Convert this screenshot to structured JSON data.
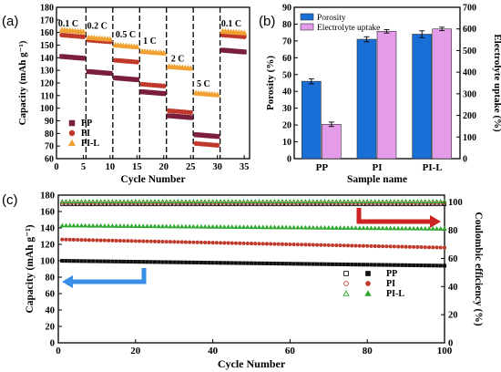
{
  "chart_data": [
    {
      "panel": "(a)",
      "type": "scatter",
      "xlabel": "Cycle Number",
      "ylabel": "Capacity (mAh g⁻¹)",
      "xlim": [
        0,
        36
      ],
      "ylim": [
        60,
        180
      ],
      "xticks": [
        0,
        5,
        10,
        15,
        20,
        25,
        30,
        35
      ],
      "yticks": [
        60,
        70,
        80,
        90,
        100,
        110,
        120,
        130,
        140,
        150,
        160,
        170,
        180
      ],
      "grid": false,
      "legend_position": "bottom-left",
      "rate_labels": [
        {
          "text": "0.1 C",
          "x": 2.2,
          "y": 165
        },
        {
          "text": "0.2 C",
          "x": 7.6,
          "y": 163
        },
        {
          "text": "0.5 C",
          "x": 12.9,
          "y": 156
        },
        {
          "text": "1 C",
          "x": 17.4,
          "y": 151
        },
        {
          "text": "2 C",
          "x": 22.6,
          "y": 137
        },
        {
          "text": "5 C",
          "x": 27.4,
          "y": 117
        },
        {
          "text": "0.1 C",
          "x": 32.6,
          "y": 165
        }
      ],
      "dividers": [
        5.5,
        10.5,
        15.5,
        20.5,
        25.5,
        30.5
      ],
      "segments": [
        [
          1,
          5
        ],
        [
          6,
          10
        ],
        [
          11,
          15
        ],
        [
          16,
          20
        ],
        [
          21,
          25
        ],
        [
          26,
          30
        ],
        [
          31,
          35
        ]
      ],
      "series": [
        {
          "name": "PP",
          "marker": "square",
          "color": "#7a1f3d",
          "levels": [
            141,
            129,
            124,
            113,
            94,
            79,
            146
          ]
        },
        {
          "name": "PI",
          "marker": "circle",
          "color": "#c0392b",
          "levels": [
            158,
            154,
            138,
            119,
            98,
            72,
            158
          ]
        },
        {
          "name": "PI-L",
          "marker": "triangle",
          "color": "#f0a030",
          "levels": [
            162,
            156,
            150,
            145,
            133,
            112,
            161
          ]
        }
      ]
    },
    {
      "panel": "(b)",
      "type": "bar",
      "xlabel": "Sample name",
      "ylabel_left": "Porosity (%)",
      "ylabel_right": "Electrolyte uptake (%)",
      "categories": [
        "PP",
        "PI",
        "PI-L"
      ],
      "ylim_left": [
        0,
        90
      ],
      "ylim_right": [
        0,
        700
      ],
      "yticks_left": [
        0,
        10,
        20,
        30,
        40,
        50,
        60,
        70,
        80,
        90
      ],
      "yticks_right": [
        0,
        100,
        200,
        300,
        400,
        500,
        600,
        700
      ],
      "legend_position": "top-left",
      "series": [
        {
          "name": "Porosity",
          "axis": "left",
          "color": "#1a6fd6",
          "values": [
            46,
            71,
            74
          ],
          "errors": [
            1.5,
            1.5,
            2
          ]
        },
        {
          "name": "Electrolyte uptake",
          "axis": "right",
          "color": "#e49be8",
          "values": [
            159,
            589,
            600
          ],
          "errors": [
            10,
            8,
            8
          ]
        }
      ]
    },
    {
      "panel": "(c)",
      "type": "scatter",
      "xlabel": "Cycle Number",
      "ylabel_left": "Capacity (mAh g⁻¹)",
      "ylabel_right": "Coulombic efficiency (%)",
      "xlim": [
        0,
        100
      ],
      "ylim_left": [
        0,
        180
      ],
      "ylim_right": [
        0,
        105
      ],
      "xticks": [
        0,
        20,
        40,
        60,
        80,
        100
      ],
      "yticks_left": [
        0,
        20,
        40,
        60,
        80,
        100,
        120,
        140,
        160,
        180
      ],
      "yticks_right": [
        0,
        20,
        40,
        60,
        80,
        100
      ],
      "legend_position": "right",
      "series": [
        {
          "name": "PP",
          "marker": "square",
          "color": "#111111",
          "capacity_start": 100,
          "capacity_end": 94,
          "efficiency": 98.5
        },
        {
          "name": "PI",
          "marker": "circle",
          "color": "#c0392b",
          "capacity_start": 126,
          "capacity_end": 116,
          "efficiency": 99.5
        },
        {
          "name": "PI-L",
          "marker": "triangle",
          "color": "#2ea82e",
          "capacity_start": 143,
          "capacity_end": 139,
          "efficiency": 100.5
        }
      ],
      "arrows": [
        {
          "direction": "left",
          "axis": "left",
          "color": "#3a8ee6"
        },
        {
          "direction": "right",
          "axis": "right",
          "color": "#cc2222"
        }
      ]
    }
  ]
}
